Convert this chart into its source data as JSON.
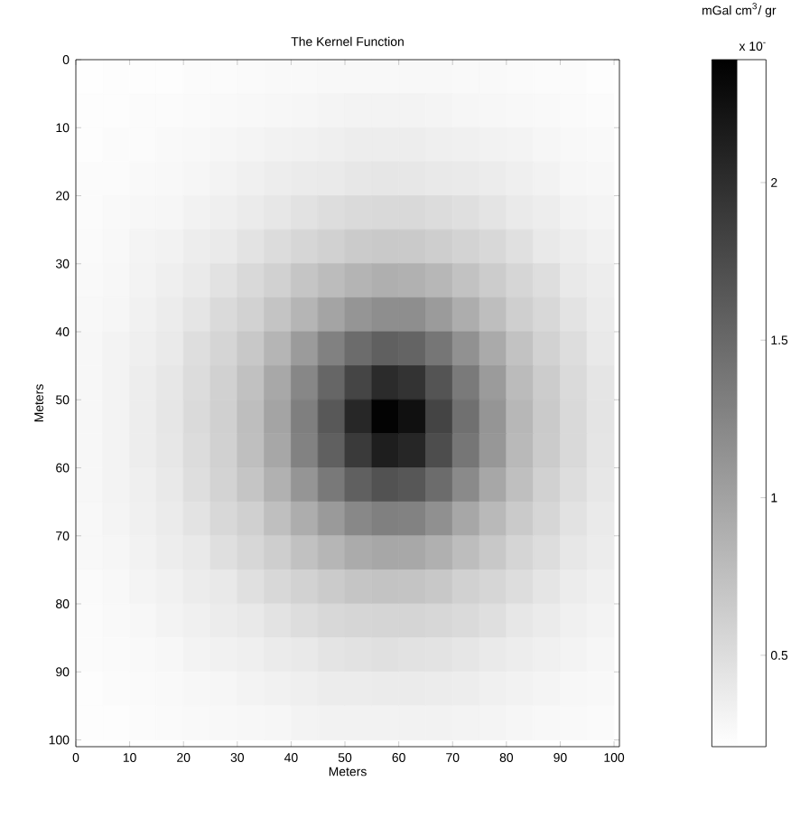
{
  "chart_data": {
    "type": "heatmap",
    "title": "The Kernel Function",
    "xlabel": "Meters",
    "ylabel": "Meters",
    "clabel": "mGal cm$^{3}$/ gr",
    "annotations": [
      "x 10$^{-}$"
    ],
    "x": [
      2.5,
      7.5,
      12.5,
      17.5,
      22.5,
      27.5,
      32.5,
      37.5,
      42.5,
      47.5,
      52.5,
      57.5,
      62.5,
      67.5,
      72.5,
      77.5,
      82.5,
      87.5,
      92.5,
      97.5
    ],
    "y": [
      2.5,
      7.5,
      12.5,
      17.5,
      22.5,
      27.5,
      32.5,
      37.5,
      42.5,
      47.5,
      52.5,
      57.5,
      62.5,
      67.5,
      72.5,
      77.5,
      82.5,
      87.5,
      92.5,
      97.5
    ],
    "xlim": [
      0,
      101
    ],
    "ylim": [
      101,
      0
    ],
    "xticks": [
      0,
      10,
      20,
      30,
      40,
      50,
      60,
      70,
      80,
      90,
      100
    ],
    "yticks": [
      0,
      10,
      20,
      30,
      40,
      50,
      60,
      70,
      80,
      90,
      100
    ],
    "clim": [
      0.21,
      2.39
    ],
    "cticks": [
      0.5,
      1,
      1.5,
      2
    ],
    "cells": [
      [
        0.22,
        0.23,
        0.23,
        0.23,
        0.24,
        0.24,
        0.25,
        0.26,
        0.26,
        0.27,
        0.27,
        0.27,
        0.27,
        0.27,
        0.26,
        0.26,
        0.25,
        0.24,
        0.24,
        0.23
      ],
      [
        0.23,
        0.23,
        0.24,
        0.24,
        0.25,
        0.26,
        0.27,
        0.28,
        0.29,
        0.3,
        0.31,
        0.31,
        0.31,
        0.3,
        0.29,
        0.28,
        0.27,
        0.26,
        0.25,
        0.24
      ],
      [
        0.23,
        0.24,
        0.24,
        0.26,
        0.27,
        0.29,
        0.3,
        0.32,
        0.33,
        0.35,
        0.36,
        0.36,
        0.36,
        0.35,
        0.34,
        0.32,
        0.31,
        0.29,
        0.27,
        0.26
      ],
      [
        0.24,
        0.24,
        0.26,
        0.27,
        0.29,
        0.31,
        0.34,
        0.36,
        0.38,
        0.39,
        0.41,
        0.42,
        0.41,
        0.4,
        0.39,
        0.37,
        0.35,
        0.32,
        0.29,
        0.28
      ],
      [
        0.24,
        0.26,
        0.28,
        0.29,
        0.32,
        0.35,
        0.38,
        0.41,
        0.46,
        0.5,
        0.52,
        0.53,
        0.53,
        0.51,
        0.48,
        0.44,
        0.39,
        0.36,
        0.32,
        0.3
      ],
      [
        0.25,
        0.27,
        0.3,
        0.32,
        0.36,
        0.39,
        0.45,
        0.51,
        0.56,
        0.6,
        0.65,
        0.67,
        0.66,
        0.63,
        0.58,
        0.54,
        0.47,
        0.4,
        0.36,
        0.33
      ],
      [
        0.26,
        0.28,
        0.31,
        0.35,
        0.39,
        0.46,
        0.53,
        0.6,
        0.7,
        0.78,
        0.85,
        0.89,
        0.87,
        0.82,
        0.73,
        0.64,
        0.56,
        0.49,
        0.4,
        0.36
      ],
      [
        0.27,
        0.29,
        0.33,
        0.37,
        0.43,
        0.52,
        0.59,
        0.71,
        0.84,
        0.98,
        1.11,
        1.17,
        1.17,
        1.06,
        0.91,
        0.76,
        0.62,
        0.54,
        0.45,
        0.38
      ],
      [
        0.28,
        0.31,
        0.35,
        0.39,
        0.49,
        0.57,
        0.68,
        0.84,
        1.06,
        1.28,
        1.46,
        1.56,
        1.53,
        1.37,
        1.14,
        0.93,
        0.73,
        0.59,
        0.5,
        0.4
      ],
      [
        0.28,
        0.31,
        0.36,
        0.41,
        0.51,
        0.6,
        0.74,
        0.95,
        1.23,
        1.51,
        1.79,
        2.01,
        1.94,
        1.66,
        1.34,
        1.06,
        0.79,
        0.64,
        0.52,
        0.43
      ],
      [
        0.28,
        0.31,
        0.36,
        0.42,
        0.52,
        0.61,
        0.76,
        0.98,
        1.3,
        1.63,
        2.04,
        2.35,
        2.24,
        1.8,
        1.42,
        1.11,
        0.82,
        0.66,
        0.53,
        0.44
      ],
      [
        0.28,
        0.31,
        0.36,
        0.41,
        0.51,
        0.6,
        0.75,
        0.96,
        1.27,
        1.56,
        1.88,
        2.12,
        2.05,
        1.72,
        1.37,
        1.09,
        0.8,
        0.65,
        0.53,
        0.43
      ],
      [
        0.28,
        0.31,
        0.35,
        0.4,
        0.49,
        0.58,
        0.7,
        0.87,
        1.11,
        1.35,
        1.56,
        1.68,
        1.64,
        1.46,
        1.2,
        0.96,
        0.75,
        0.6,
        0.5,
        0.41
      ],
      [
        0.27,
        0.3,
        0.34,
        0.38,
        0.45,
        0.54,
        0.61,
        0.75,
        0.91,
        1.07,
        1.22,
        1.29,
        1.27,
        1.15,
        0.96,
        0.8,
        0.66,
        0.56,
        0.46,
        0.39
      ],
      [
        0.27,
        0.29,
        0.32,
        0.36,
        0.4,
        0.48,
        0.55,
        0.63,
        0.74,
        0.83,
        0.92,
        0.96,
        0.95,
        0.88,
        0.77,
        0.68,
        0.57,
        0.5,
        0.41,
        0.37
      ],
      [
        0.25,
        0.27,
        0.3,
        0.33,
        0.37,
        0.4,
        0.47,
        0.54,
        0.59,
        0.65,
        0.7,
        0.72,
        0.71,
        0.68,
        0.6,
        0.56,
        0.5,
        0.43,
        0.37,
        0.34
      ],
      [
        0.24,
        0.26,
        0.28,
        0.31,
        0.34,
        0.37,
        0.4,
        0.45,
        0.5,
        0.54,
        0.56,
        0.57,
        0.57,
        0.55,
        0.52,
        0.48,
        0.41,
        0.38,
        0.34,
        0.31
      ],
      [
        0.24,
        0.25,
        0.26,
        0.28,
        0.31,
        0.33,
        0.35,
        0.38,
        0.4,
        0.44,
        0.46,
        0.47,
        0.46,
        0.45,
        0.42,
        0.39,
        0.36,
        0.34,
        0.31,
        0.29
      ],
      [
        0.23,
        0.24,
        0.25,
        0.26,
        0.28,
        0.29,
        0.31,
        0.33,
        0.35,
        0.37,
        0.37,
        0.38,
        0.38,
        0.37,
        0.36,
        0.34,
        0.32,
        0.3,
        0.28,
        0.27
      ],
      [
        0.23,
        0.23,
        0.24,
        0.25,
        0.26,
        0.27,
        0.28,
        0.29,
        0.31,
        0.32,
        0.32,
        0.32,
        0.32,
        0.32,
        0.31,
        0.3,
        0.29,
        0.27,
        0.26,
        0.25
      ]
    ]
  }
}
